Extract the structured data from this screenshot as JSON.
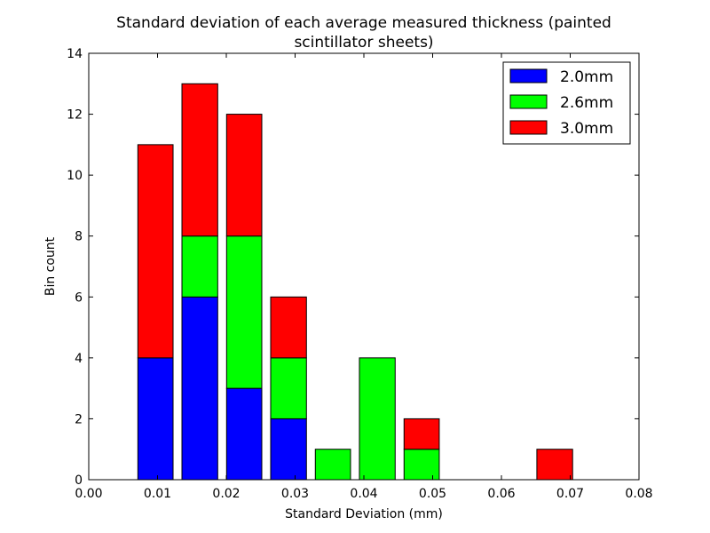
{
  "chart_data": {
    "type": "bar",
    "stacked": true,
    "title_lines": [
      "Standard deviation of each average measured thickness (painted",
      "scintillator sheets)"
    ],
    "xlabel": "Standard Deviation (mm)",
    "ylabel": "Bin count",
    "xlim": [
      0.0,
      0.08
    ],
    "ylim": [
      0,
      14
    ],
    "xticks": [
      0.0,
      0.01,
      0.02,
      0.03,
      0.04,
      0.05,
      0.06,
      0.07,
      0.08
    ],
    "xtick_labels": [
      "0.00",
      "0.01",
      "0.02",
      "0.03",
      "0.04",
      "0.05",
      "0.06",
      "0.07",
      "0.08"
    ],
    "yticks": [
      0,
      2,
      4,
      6,
      8,
      10,
      12,
      14
    ],
    "ytick_labels": [
      "0",
      "2",
      "4",
      "6",
      "8",
      "10",
      "12",
      "14"
    ],
    "grid": false,
    "legend_position": "top-right",
    "bin_edges": [
      0.0065,
      0.0129,
      0.0194,
      0.0258,
      0.0323,
      0.0387,
      0.0452,
      0.0516,
      0.0581,
      0.0645,
      0.071
    ],
    "series": [
      {
        "name": "2.0mm",
        "color": "#0000ff",
        "values": [
          4,
          6,
          3,
          2,
          0,
          0,
          0,
          0,
          0,
          0
        ]
      },
      {
        "name": "2.6mm",
        "color": "#00ff00",
        "values": [
          0,
          2,
          5,
          2,
          1,
          4,
          1,
          0,
          0,
          0
        ]
      },
      {
        "name": "3.0mm",
        "color": "#ff0000",
        "values": [
          7,
          5,
          4,
          2,
          0,
          0,
          1,
          0,
          0,
          1
        ]
      }
    ]
  }
}
